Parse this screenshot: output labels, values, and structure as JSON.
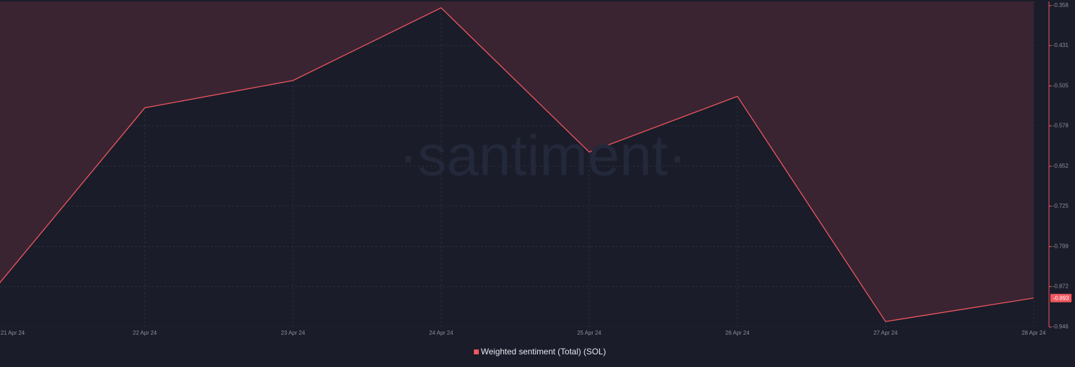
{
  "chart_data": {
    "type": "line",
    "watermark": "·santiment·",
    "categories": [
      "21 Apr 24",
      "22 Apr 24",
      "23 Apr 24",
      "24 Apr 24",
      "25 Apr 24",
      "26 Apr 24",
      "27 Apr 24",
      "28 Apr 24"
    ],
    "series": [
      {
        "name": "Weighted sentiment (Total) (SOL)",
        "color": "#f0565f",
        "values": [
          -0.872,
          -0.545,
          -0.495,
          -0.362,
          -0.626,
          -0.524,
          -0.936,
          -0.893
        ]
      }
    ],
    "ylim": [
      -0.946,
      -0.358
    ],
    "yticks": [
      -0.358,
      -0.431,
      -0.505,
      -0.578,
      -0.652,
      -0.725,
      -0.799,
      -0.872,
      -0.946
    ],
    "grid": true,
    "fill_above": true
  }
}
